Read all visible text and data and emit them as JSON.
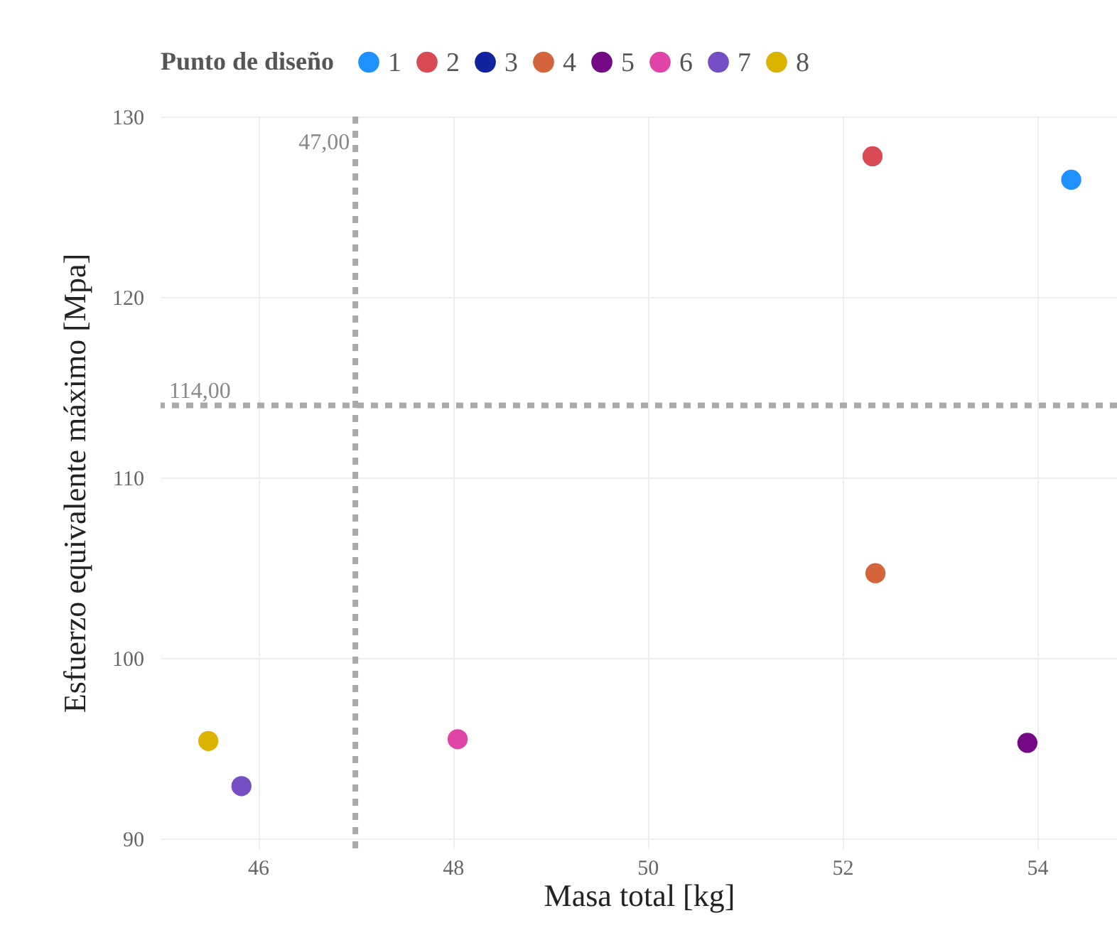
{
  "chart_data": {
    "type": "scatter",
    "xlabel": "Masa total [kg]",
    "ylabel": "Esfuerzo equivalente máximo [Mpa]",
    "legend_title": "Punto de diseño",
    "series": [
      {
        "name": "1",
        "color": "#1e90ff",
        "x": [
          54.35
        ],
        "values": [
          126.5
        ]
      },
      {
        "name": "2",
        "color": "#d94a55",
        "x": [
          52.31
        ],
        "values": [
          127.8
        ]
      },
      {
        "name": "3",
        "color": "#12239e",
        "x": [
          null
        ],
        "values": [
          null
        ]
      },
      {
        "name": "4",
        "color": "#d3643b",
        "x": [
          52.34
        ],
        "values": [
          104.7
        ]
      },
      {
        "name": "5",
        "color": "#750985",
        "x": [
          53.9
        ],
        "values": [
          95.3
        ]
      },
      {
        "name": "6",
        "color": "#e044a7",
        "x": [
          48.05
        ],
        "values": [
          95.5
        ]
      },
      {
        "name": "7",
        "color": "#744ec2",
        "x": [
          45.83
        ],
        "values": [
          92.9
        ]
      },
      {
        "name": "8",
        "color": "#d9b300",
        "x": [
          45.49
        ],
        "values": [
          95.4
        ]
      }
    ],
    "xlim": [
      45,
      54.82
    ],
    "ylim": [
      89.45,
      130
    ],
    "xticks": [
      46,
      48,
      50,
      52,
      54
    ],
    "yticks": [
      90,
      100,
      110,
      120,
      130
    ],
    "ref_lines": [
      {
        "axis": "x",
        "value": 47,
        "label": "47,00",
        "color": "#aaaaaa",
        "line_style": "dashed"
      },
      {
        "axis": "y",
        "value": 114,
        "label": "114,00",
        "color": "#aaaaaa",
        "line_style": "dashed"
      }
    ],
    "grid": true,
    "legend": "top left",
    "marker": "circle"
  }
}
